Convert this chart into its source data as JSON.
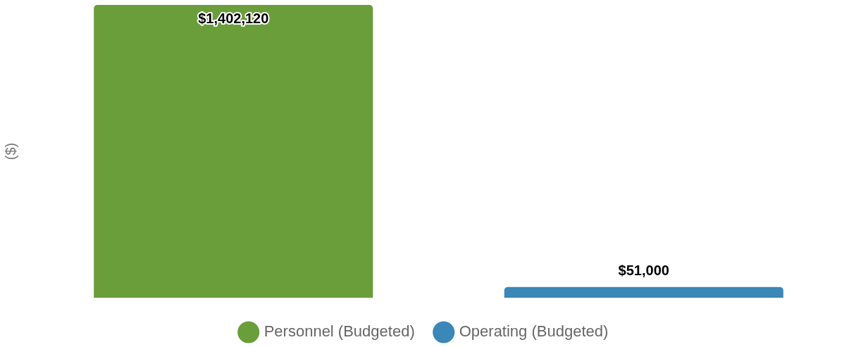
{
  "chart_data": {
    "type": "bar",
    "ylabel": "($)",
    "categories": [
      null
    ],
    "series": [
      {
        "name": "Personnel (Budgeted)",
        "color": "#699e3a",
        "values": [
          1402120
        ],
        "value_labels": [
          "$1,402,120"
        ]
      },
      {
        "name": "Operating (Budgeted)",
        "color": "#3a87b8",
        "values": [
          51000
        ],
        "value_labels": [
          "$51,000"
        ]
      }
    ],
    "legend": "bottom",
    "grid": false
  }
}
